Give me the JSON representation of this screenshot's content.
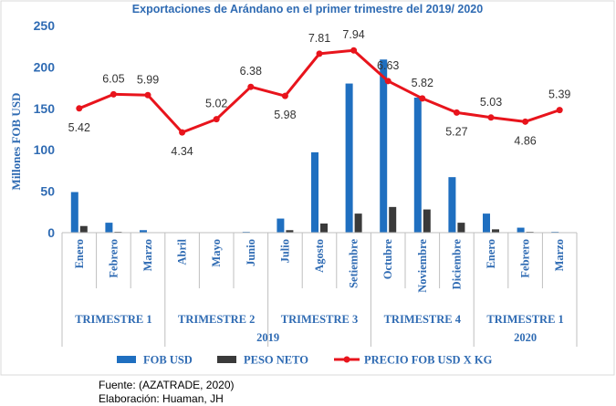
{
  "chart_data": {
    "type": "bar+line",
    "title": "Exportaciones de Arándano en el primer trimestre del 2019/ 2020",
    "ylabel": "Millones FOB USD",
    "ylim": [
      0,
      250
    ],
    "yticks": [
      "0",
      "50",
      "100",
      "150",
      "200",
      "250"
    ],
    "categories": [
      "Enero",
      "Febrero",
      "Marzo",
      "Abril",
      "Mayo",
      "Junio",
      "Julio",
      "Agosto",
      "Setiembre",
      "Octubre",
      "Noviembre",
      "Diciembre",
      "Enero",
      "Febrero",
      "Marzo"
    ],
    "groups": [
      {
        "label": "TRIMESTRE 1",
        "start": 0,
        "end": 2
      },
      {
        "label": "TRIMESTRE 2",
        "start": 3,
        "end": 5
      },
      {
        "label": "TRIMESTRE 3",
        "start": 6,
        "end": 8
      },
      {
        "label": "TRIMESTRE 4",
        "start": 9,
        "end": 11
      },
      {
        "label": "TRIMESTRE 1",
        "start": 12,
        "end": 14
      }
    ],
    "years": [
      {
        "label": "2019",
        "start": 0,
        "end": 11
      },
      {
        "label": "2020",
        "start": 12,
        "end": 14
      }
    ],
    "series": [
      {
        "name": "FOB USD",
        "type": "bar",
        "color": "#1f6fc0",
        "values": [
          49,
          12,
          3,
          0,
          0,
          1,
          17,
          97,
          180,
          209,
          163,
          67,
          23,
          6,
          1
        ]
      },
      {
        "name": "PESO NETO",
        "type": "bar",
        "color": "#3a3a3a",
        "values": [
          8,
          1,
          0.5,
          0,
          0,
          0.3,
          3,
          11,
          23,
          31,
          28,
          12,
          4,
          1,
          0.3
        ]
      },
      {
        "name": "PRECIO FOB USD X KG",
        "type": "line",
        "color": "#e8141c",
        "plot_values": [
          150,
          167,
          166,
          121,
          137,
          176,
          165,
          216,
          220,
          183,
          162,
          145,
          139,
          134,
          148
        ],
        "labels": [
          "5.42",
          "6.05",
          "5.99",
          "4.34",
          "5.02",
          "6.38",
          "5.98",
          "7.81",
          "7.94",
          "6.63",
          "5.82",
          "5.27",
          "5.03",
          "4.86",
          "5.39"
        ],
        "label_pos": [
          "below",
          "above",
          "above",
          "below",
          "above",
          "above",
          "below",
          "above",
          "above",
          "above",
          "above",
          "below",
          "above",
          "below",
          "above"
        ]
      }
    ],
    "legend_position": "bottom",
    "grid": false
  },
  "footer": {
    "source": "Fuente: (AZATRADE, 2020)",
    "credit": "Elaboración: Huaman, JH"
  }
}
